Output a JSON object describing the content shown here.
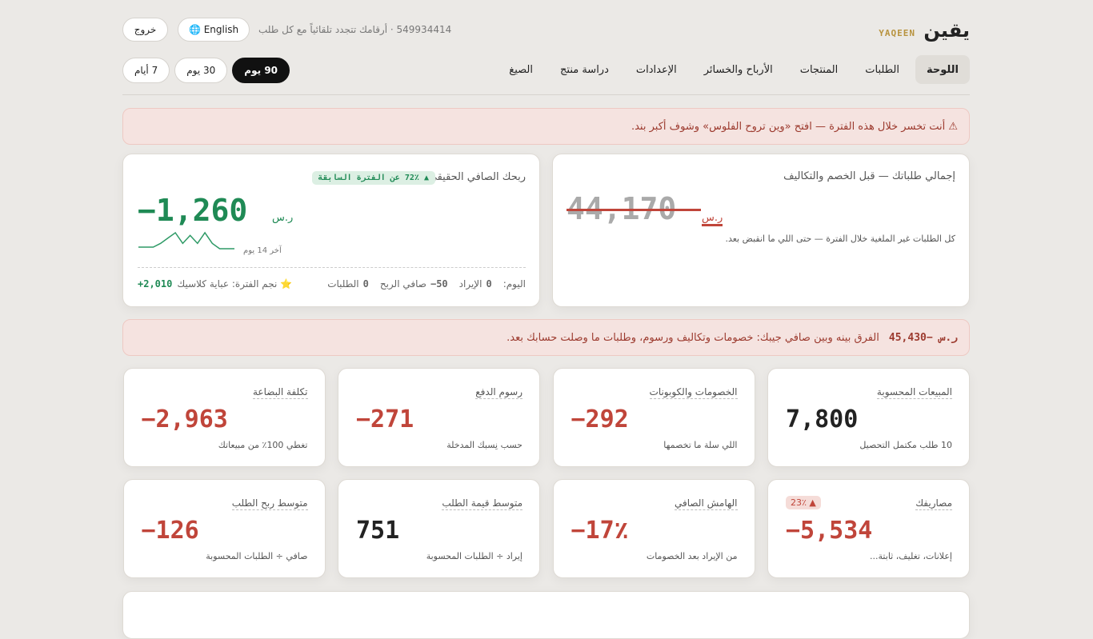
{
  "header": {
    "brand": "يقين",
    "brand_latin": "YAQEEN",
    "subtitle": "549934414 · أرقامك تتجدد تلقائياً مع كل طلب",
    "language_button": "English 🌐",
    "logout_button": "خروج"
  },
  "nav": {
    "items": [
      "اللوحة",
      "الطلبات",
      "المنتجات",
      "الأرباح والخسائر",
      "الإعدادات",
      "دراسة منتج",
      "الصيغ"
    ],
    "active": 0
  },
  "periods": {
    "items": [
      "7 أيام",
      "30 يوم",
      "90 يوم"
    ],
    "active": 2
  },
  "alert": "⚠ أنت تخسر خلال هذه الفترة — افتح «وين تروح الفلوس» وشوف أكبر بند.",
  "gross_card": {
    "title": "إجمالي طلباتك — قبل الخصم والتكاليف",
    "value": "44,170",
    "currency": "ر.س",
    "note": "كل الطلبات غير الملغية خلال الفترة — حتى اللي ما انقبض بعد."
  },
  "net_card": {
    "title": "ربحك الصافي الحقيقي",
    "badge": "▲ 72٪ عن الفترة السابقة",
    "value": "−1,260",
    "currency": "ر.س",
    "sparkline": {
      "label": "آخر 14 يوم",
      "values": [
        0,
        0,
        0,
        1,
        3,
        1,
        2.5,
        1,
        3,
        2,
        1,
        0.3,
        0.3,
        0.3
      ]
    },
    "footer": {
      "prefix": "اليوم:",
      "items": [
        {
          "value": "0",
          "label": "الإيراد"
        },
        {
          "value": "50−",
          "label": "صافي الربح"
        },
        {
          "value": "0",
          "label": "الطلبات"
        }
      ],
      "star": {
        "label": "⭐ نجم الفترة: عباية كلاسيك",
        "value": "+2,010"
      }
    }
  },
  "diff_banner": {
    "value": "ر.س −45,430",
    "text": "الفرق بينه وبين صافي جيبك: خصومات وتكاليف ورسوم، وطلبات ما وصلت حسابك بعد."
  },
  "metrics": [
    {
      "title": "المبيعات المحسوبة",
      "value": "7,800",
      "note": "10 طلب مكتمل التحصيل",
      "tone": "neutral"
    },
    {
      "title": "الخصومات والكوبونات",
      "value": "−292",
      "note": "اللي سلة ما تخصمها",
      "tone": "negative"
    },
    {
      "title": "رسوم الدفع",
      "value": "−271",
      "note": "حسب نِسبك المدخلة",
      "tone": "negative"
    },
    {
      "title": "تكلفة البضاعة",
      "value": "−2,963",
      "note": "تغطي 100٪ من مبيعاتك",
      "tone": "negative"
    },
    {
      "title": "مصاريفك",
      "badge": "▲ 23٪",
      "value": "−5,534",
      "note": "إعلانات، تغليف، ثابتة...",
      "tone": "negative"
    },
    {
      "title": "الهامش الصافي",
      "value": "−17٪",
      "note": "من الإيراد بعد الخصومات",
      "tone": "negative"
    },
    {
      "title": "متوسط قيمة الطلب",
      "value": "751",
      "note": "إيراد ÷ الطلبات المحسوبة",
      "tone": "neutral"
    },
    {
      "title": "متوسط ربح الطلب",
      "value": "−126",
      "note": "صافي ÷ الطلبات المحسوبة",
      "tone": "negative"
    }
  ]
}
